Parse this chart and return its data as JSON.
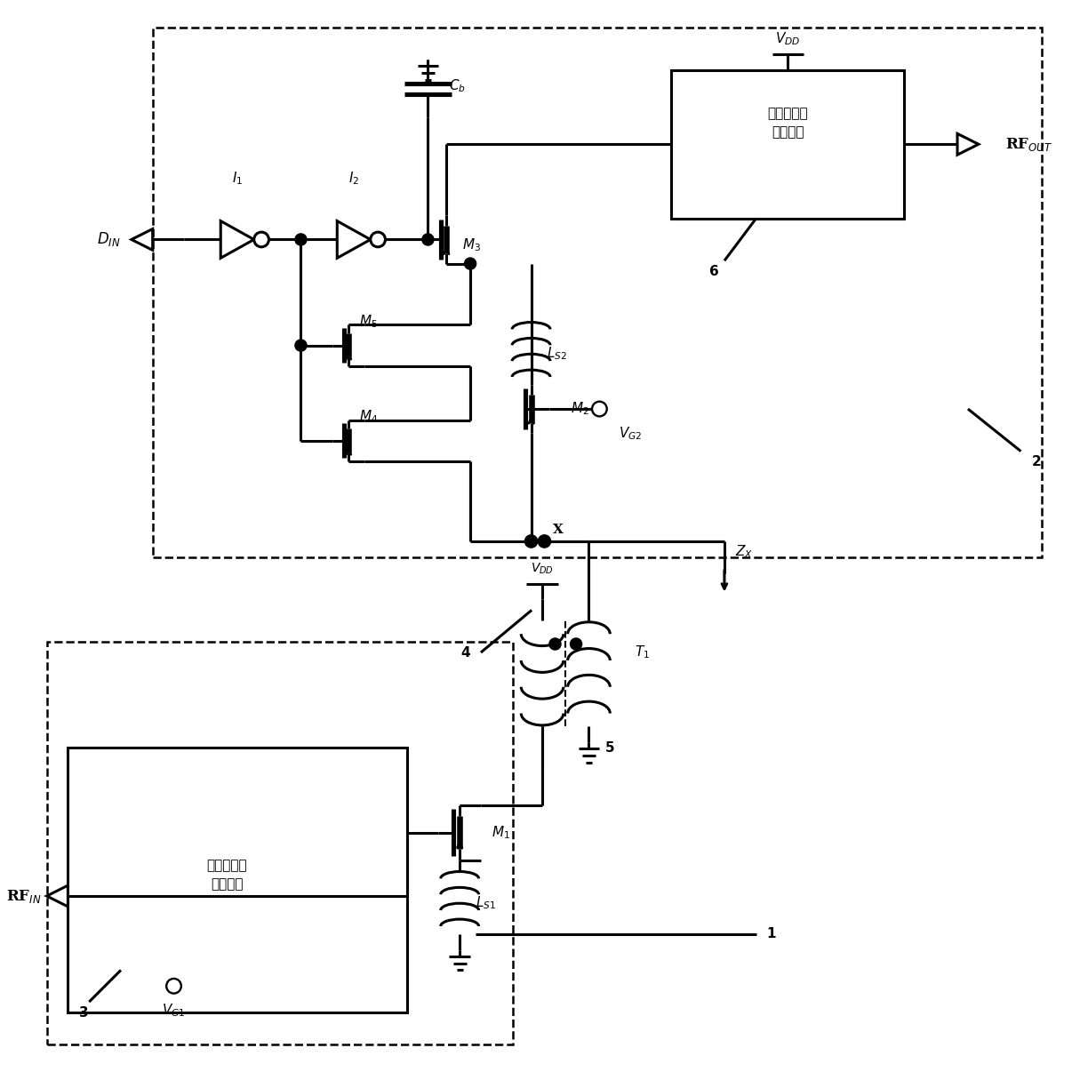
{
  "bg_color": "#ffffff",
  "line_color": "#000000",
  "lw": 2.2,
  "fig_w": 12.15,
  "fig_h": 12.06,
  "labels": {
    "box_out": "输出匹配及\n偏置网络",
    "box_in": "输入匹配及\n偏置网络"
  }
}
